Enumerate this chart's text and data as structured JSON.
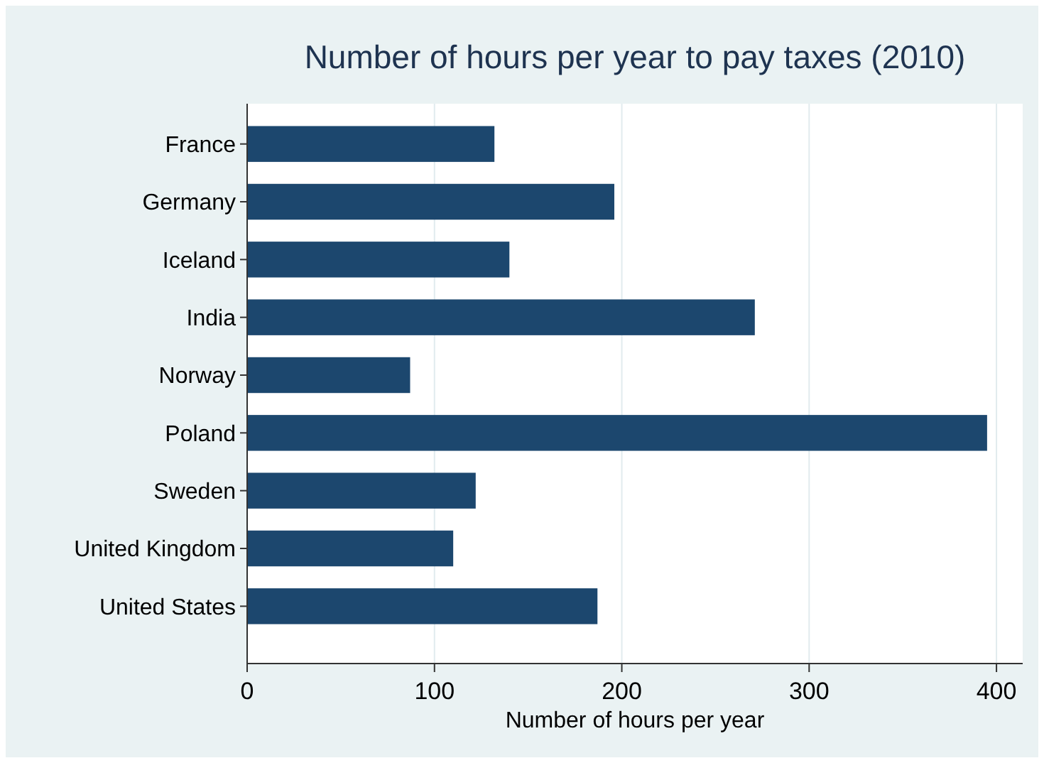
{
  "chart_data": {
    "type": "bar",
    "orientation": "horizontal",
    "title": "Number of hours per year to pay taxes (2010)",
    "xlabel": "Number of hours per year",
    "categories": [
      "France",
      "Germany",
      "Iceland",
      "India",
      "Norway",
      "Poland",
      "Sweden",
      "United Kingdom",
      "United States"
    ],
    "values": [
      132,
      196,
      140,
      271,
      87,
      395,
      122,
      110,
      187
    ],
    "color": "#1c476e",
    "xlim": [
      0,
      414
    ],
    "xticks": [
      0,
      100,
      200,
      300,
      400
    ],
    "grid": "x"
  }
}
